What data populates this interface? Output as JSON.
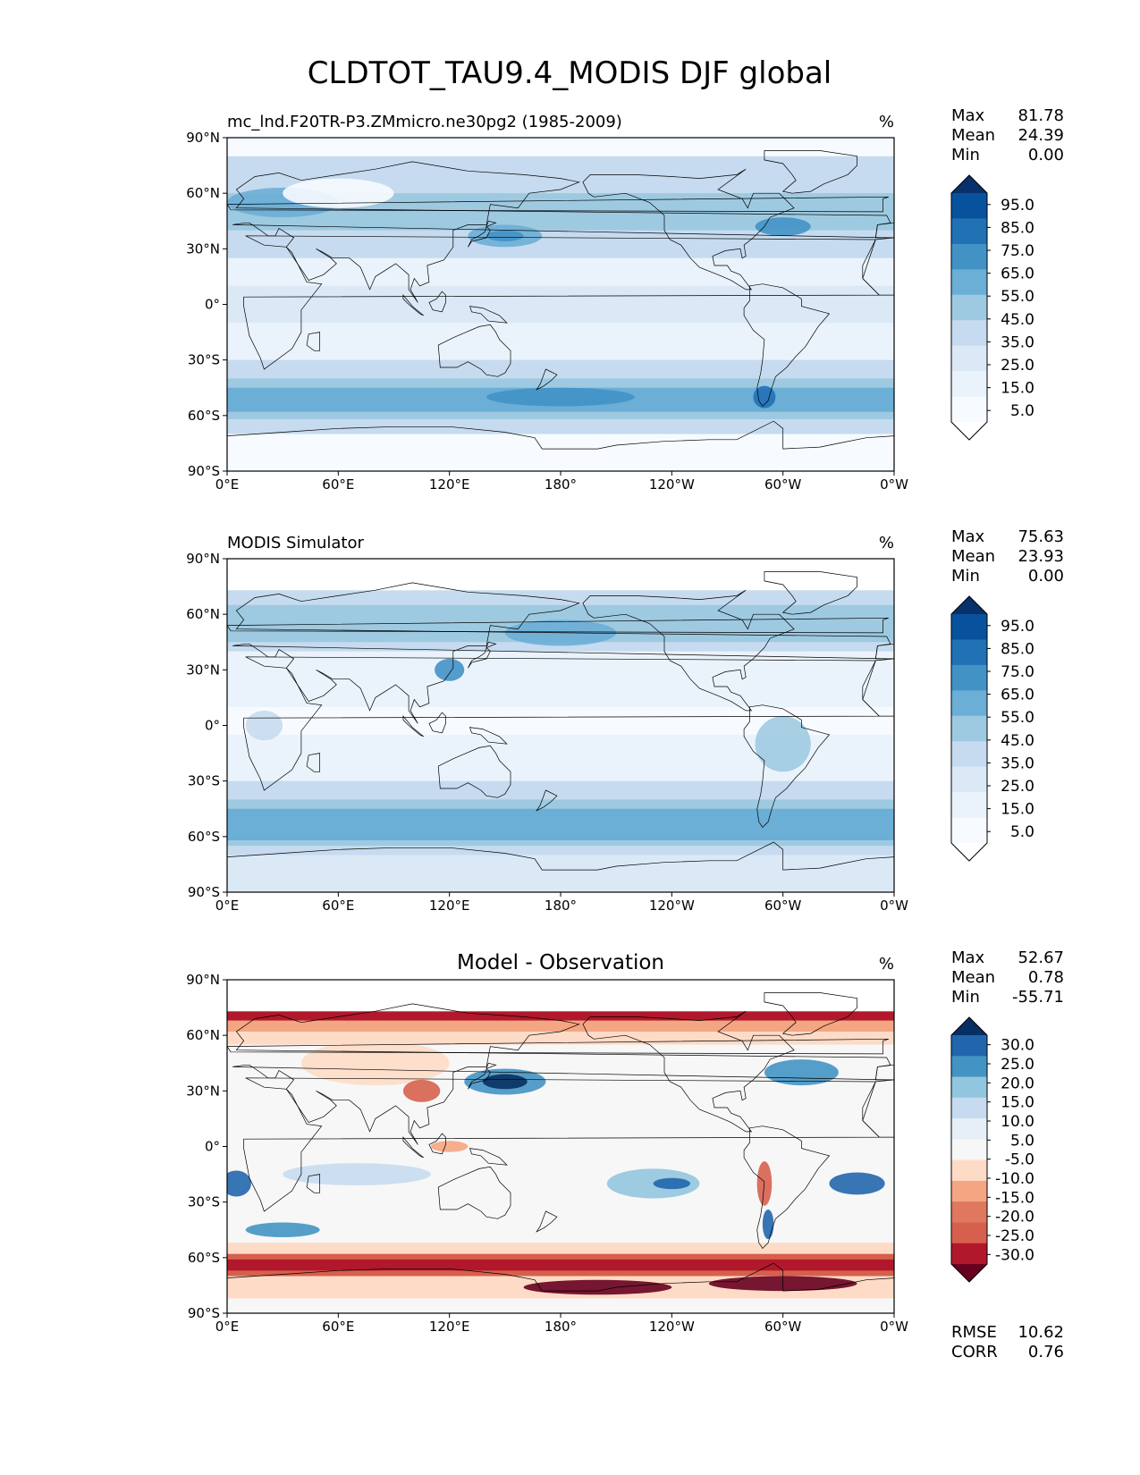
{
  "figure": {
    "title": "CLDTOT_TAU9.4_MODIS DJF global"
  },
  "axes": {
    "lat_ticks": [
      "90°N",
      "60°N",
      "30°N",
      "0°",
      "30°S",
      "60°S",
      "90°S"
    ],
    "lon_ticks": [
      "0°E",
      "60°E",
      "120°E",
      "180°",
      "120°W",
      "60°W",
      "0°W"
    ]
  },
  "panels": [
    {
      "id": "model",
      "left_title": "mc_lnd.F20TR-P3.ZMmicro.ne30pg2 (1985-2009)",
      "center_title": "",
      "units": "%",
      "stats": [
        {
          "label": "Max",
          "value": "81.78"
        },
        {
          "label": "Mean",
          "value": "24.39"
        },
        {
          "label": "Min",
          "value": "0.00"
        }
      ],
      "colorbar": {
        "labels": [
          "95.0",
          "85.0",
          "75.0",
          "65.0",
          "55.0",
          "45.0",
          "35.0",
          "25.0",
          "15.0",
          "5.0"
        ],
        "colors_top_to_bottom": [
          "#08306b",
          "#08519c",
          "#2171b5",
          "#4292c6",
          "#6baed6",
          "#9ecae1",
          "#c6dbef",
          "#dbe9f6",
          "#eaf3fb",
          "#f7fbff",
          "#ffffff"
        ]
      },
      "footer_stats": []
    },
    {
      "id": "obs",
      "left_title": "MODIS Simulator",
      "center_title": "",
      "units": "%",
      "stats": [
        {
          "label": "Max",
          "value": "75.63"
        },
        {
          "label": "Mean",
          "value": "23.93"
        },
        {
          "label": "Min",
          "value": "0.00"
        }
      ],
      "colorbar": {
        "labels": [
          "95.0",
          "85.0",
          "75.0",
          "65.0",
          "55.0",
          "45.0",
          "35.0",
          "25.0",
          "15.0",
          "5.0"
        ],
        "colors_top_to_bottom": [
          "#08306b",
          "#08519c",
          "#2171b5",
          "#4292c6",
          "#6baed6",
          "#9ecae1",
          "#c6dbef",
          "#dbe9f6",
          "#eaf3fb",
          "#f7fbff",
          "#ffffff"
        ]
      },
      "footer_stats": []
    },
    {
      "id": "diff",
      "left_title": "",
      "center_title": "Model - Observation",
      "units": "%",
      "stats": [
        {
          "label": "Max",
          "value": "52.67"
        },
        {
          "label": "Mean",
          "value": "0.78"
        },
        {
          "label": "Min",
          "value": "-55.71"
        }
      ],
      "colorbar": {
        "labels": [
          "30.0",
          "25.0",
          "20.0",
          "15.0",
          "10.0",
          "5.0",
          "-5.0",
          "-10.0",
          "-15.0",
          "-20.0",
          "-25.0",
          "-30.0"
        ],
        "colors_top_to_bottom": [
          "#053061",
          "#2166ac",
          "#4393c3",
          "#92c5de",
          "#c6dbef",
          "#e6eff7",
          "#f7f7f7",
          "#fddbc7",
          "#f4a582",
          "#e0785f",
          "#d6604d",
          "#b2182b",
          "#67001f"
        ]
      },
      "footer_stats": [
        {
          "label": "RMSE",
          "value": "10.62"
        },
        {
          "label": "CORR",
          "value": "0.76"
        }
      ]
    }
  ]
}
